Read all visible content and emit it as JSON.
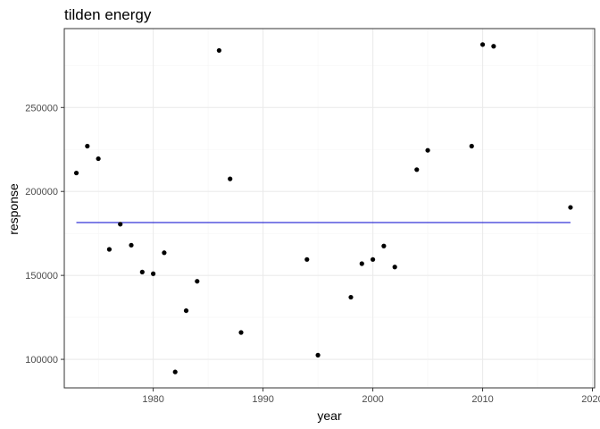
{
  "chart_data": {
    "type": "scatter",
    "title": "tilden energy",
    "xlabel": "year",
    "ylabel": "response",
    "xlim": [
      1971.9,
      2020.2
    ],
    "ylim": [
      83000,
      297000
    ],
    "x_ticks": [
      1980,
      1990,
      2000,
      2010,
      2020
    ],
    "y_ticks": [
      100000,
      150000,
      200000,
      250000
    ],
    "x_tick_labels": [
      "1980",
      "1990",
      "2000",
      "2010",
      "2020"
    ],
    "y_tick_labels": [
      "100000",
      "150000",
      "200000",
      "250000"
    ],
    "grid": true,
    "legend": "none",
    "colors": {
      "points": "#000000",
      "line": "#0000cc",
      "panel_border": "#333333",
      "grid_major": "#ebebeb",
      "grid_minor": "#f5f5f5"
    },
    "series": [
      {
        "type": "scatter",
        "x": [
          1973,
          1974,
          1975,
          1976,
          1977,
          1978,
          1979,
          1980,
          1981,
          1982,
          1983,
          1984,
          1986,
          1987,
          1988,
          1994,
          1995,
          1998,
          1999,
          2000,
          2001,
          2002,
          2004,
          2005,
          2009,
          2010,
          2011,
          2018
        ],
        "y": [
          211000,
          227000,
          219500,
          165500,
          180500,
          168000,
          152000,
          151000,
          163500,
          92500,
          129000,
          146500,
          284000,
          207500,
          116000,
          159500,
          102500,
          137000,
          157000,
          159500,
          167500,
          155000,
          213000,
          224500,
          227000,
          287500,
          286500,
          190500
        ]
      },
      {
        "type": "line",
        "x": [
          1973,
          2018
        ],
        "y": [
          181500,
          181500
        ]
      }
    ]
  }
}
